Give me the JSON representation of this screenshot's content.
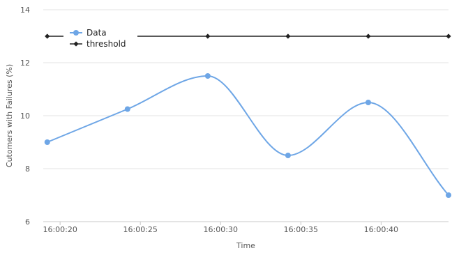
{
  "chart_data": {
    "type": "line",
    "title": "",
    "xlabel": "Time",
    "ylabel": "Cutomers with Failures (%)",
    "x_tick_labels": [
      "16:00:20",
      "16:00:25",
      "16:00:30",
      "16:00:35",
      "16:00:40"
    ],
    "y_tick_labels": [
      "6",
      "8",
      "10",
      "12",
      "14"
    ],
    "ylim": [
      6,
      14
    ],
    "grid": "horizontal",
    "legend_position": "top-left",
    "x": [
      "16:00:19.2",
      "16:00:24.2",
      "16:00:29.2",
      "16:00:34.2",
      "16:00:39.2",
      "16:00:44.2"
    ],
    "series": [
      {
        "name": "Data",
        "color": "#6ea6e6",
        "smooth": true,
        "values": [
          9.0,
          10.25,
          11.5,
          8.5,
          10.5,
          7.0
        ]
      },
      {
        "name": "threshold",
        "color": "#222222",
        "smooth": false,
        "values": [
          13,
          13,
          13,
          13,
          13,
          13
        ]
      }
    ]
  }
}
